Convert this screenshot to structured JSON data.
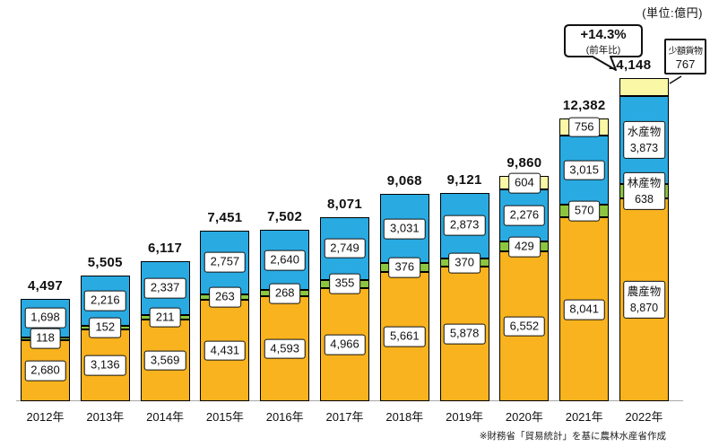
{
  "unit_label": "(単位:億円)",
  "footnote": "※財務省「貿易統計」を基に農林水産省作成",
  "chart_data": {
    "type": "bar",
    "stacked": true,
    "title": "",
    "unit": "億円",
    "legend_position": "none",
    "grid": false,
    "ylim": [
      0,
      14148
    ],
    "categories": [
      "2012年",
      "2013年",
      "2014年",
      "2015年",
      "2016年",
      "2017年",
      "2018年",
      "2019年",
      "2020年",
      "2021年",
      "2022年"
    ],
    "series": [
      {
        "name": "農産物",
        "color": "#F8B31F",
        "values": [
          2680,
          3136,
          3569,
          4431,
          4593,
          4966,
          5661,
          5878,
          6552,
          8041,
          8870
        ]
      },
      {
        "name": "林産物",
        "color": "#8CC640",
        "values": [
          118,
          152,
          211,
          263,
          268,
          355,
          376,
          370,
          429,
          570,
          638
        ]
      },
      {
        "name": "水産物",
        "color": "#29ABE2",
        "values": [
          1698,
          2216,
          2337,
          2757,
          2640,
          2749,
          3031,
          2873,
          2276,
          3015,
          3873
        ]
      },
      {
        "name": "少額貨物",
        "color": "#FAF7A6",
        "values": [
          null,
          null,
          null,
          null,
          null,
          null,
          null,
          null,
          604,
          756,
          767
        ]
      }
    ],
    "totals": [
      4497,
      5505,
      6117,
      7451,
      7502,
      8071,
      9068,
      9121,
      9860,
      12382,
      14148
    ],
    "series_names_shown_inside_bars_for": "2022年",
    "annotations": {
      "yoy_growth": {
        "text": "+14.3%",
        "caption": "(前年比)",
        "target": "2022年"
      },
      "small_cargo": {
        "label": "少額貨物",
        "value": 767,
        "target": "2022年"
      }
    }
  }
}
